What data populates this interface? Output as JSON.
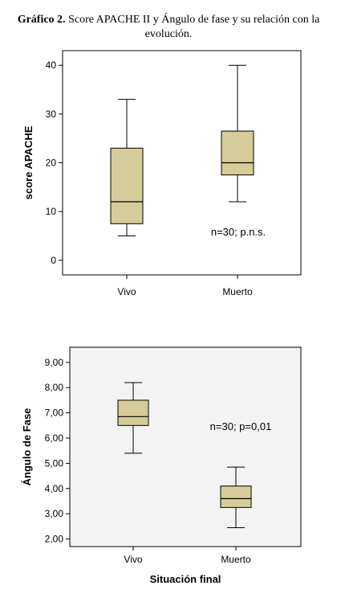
{
  "figure": {
    "title_bold": "Gráfico 2.",
    "title_rest": " Score APACHE II y  Ángulo de fase y su relación con la evolución.",
    "box_fill": "#d6cc9a",
    "plot_bg_bottom": "#f3f3f3"
  },
  "chart_data": [
    {
      "type": "box",
      "ylabel": "score APACHE",
      "xlabel": "",
      "categories": [
        "Vivo",
        "Muerto"
      ],
      "ylim": [
        -3,
        43
      ],
      "yticks": [
        0,
        10,
        20,
        30,
        40
      ],
      "ytick_labels": [
        "0",
        "10",
        "20",
        "30",
        "40"
      ],
      "boxes": [
        {
          "category": "Vivo",
          "min": 5,
          "q1": 7.5,
          "median": 12,
          "q3": 23,
          "max": 33
        },
        {
          "category": "Muerto",
          "min": 12,
          "q1": 17.5,
          "median": 20,
          "q3": 26.5,
          "max": 40
        }
      ],
      "annotation": "n=30; p.n.s."
    },
    {
      "type": "box",
      "ylabel": "Ángulo de Fase",
      "xlabel": "Situación final",
      "categories": [
        "Vivo",
        "Muerto"
      ],
      "ylim": [
        1.7,
        9.6
      ],
      "yticks": [
        2,
        3,
        4,
        5,
        6,
        7,
        8,
        9
      ],
      "ytick_labels": [
        "2,00",
        "3,00",
        "4,00",
        "5,00",
        "6,00",
        "7,00",
        "8,00",
        "9,00"
      ],
      "boxes": [
        {
          "category": "Vivo",
          "min": 5.4,
          "q1": 6.5,
          "median": 6.85,
          "q3": 7.5,
          "max": 8.2
        },
        {
          "category": "Muerto",
          "min": 2.45,
          "q1": 3.25,
          "median": 3.6,
          "q3": 4.1,
          "max": 4.85
        }
      ],
      "annotation": "n=30; p=0,01"
    }
  ]
}
